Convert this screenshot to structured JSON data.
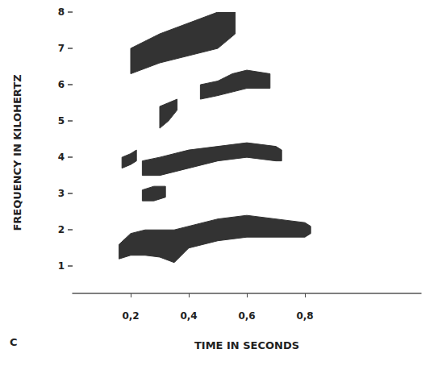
{
  "chart_data": {
    "type": "spectrogram",
    "panel_label": "C",
    "x_label": "TIME IN SECONDS",
    "y_label": "FREQUENCY IN KILOHERTZ",
    "color": "#333333",
    "grid": false,
    "xlim": [
      0,
      1.2
    ],
    "xticks": [
      {
        "value": 0.2,
        "label": "0,2"
      },
      {
        "value": 0.4,
        "label": "0,4"
      },
      {
        "value": 0.6,
        "label": "0,6"
      },
      {
        "value": 0.8,
        "label": "0,8"
      }
    ],
    "ylim": [
      0.25,
      8
    ],
    "yticks": [
      1,
      2,
      3,
      4,
      5,
      6,
      7,
      8
    ],
    "series": [
      {
        "x": [
          0.16,
          0.2,
          0.25,
          0.3,
          0.35,
          0.4,
          0.5,
          0.6,
          0.7,
          0.8,
          0.82
        ],
        "low": [
          1.2,
          1.3,
          1.3,
          1.25,
          1.1,
          1.5,
          1.7,
          1.8,
          1.8,
          1.8,
          1.9
        ],
        "high": [
          1.6,
          1.9,
          2.0,
          2.0,
          2.0,
          2.1,
          2.3,
          2.4,
          2.3,
          2.2,
          2.1
        ]
      },
      {
        "x": [
          0.24,
          0.3,
          0.4,
          0.5,
          0.6,
          0.7,
          0.72
        ],
        "low": [
          3.5,
          3.5,
          3.7,
          3.9,
          4.0,
          3.9,
          3.9
        ],
        "high": [
          3.9,
          4.0,
          4.2,
          4.3,
          4.4,
          4.3,
          4.2
        ]
      },
      {
        "x": [
          0.17,
          0.2,
          0.22
        ],
        "low": [
          3.7,
          3.8,
          3.9
        ],
        "high": [
          4.0,
          4.1,
          4.2
        ]
      },
      {
        "x": [
          0.24,
          0.28,
          0.32
        ],
        "low": [
          2.8,
          2.8,
          2.9
        ],
        "high": [
          3.1,
          3.2,
          3.2
        ]
      },
      {
        "x": [
          0.3,
          0.33,
          0.36
        ],
        "low": [
          4.8,
          5.0,
          5.3
        ],
        "high": [
          5.4,
          5.5,
          5.6
        ]
      },
      {
        "x": [
          0.44,
          0.5,
          0.55,
          0.6,
          0.68
        ],
        "low": [
          5.6,
          5.7,
          5.8,
          5.9,
          5.9
        ],
        "high": [
          6.0,
          6.1,
          6.3,
          6.4,
          6.3
        ]
      },
      {
        "x": [
          0.2,
          0.3,
          0.4,
          0.5,
          0.56
        ],
        "low": [
          6.3,
          6.6,
          6.8,
          7.0,
          7.4
        ],
        "high": [
          7.0,
          7.4,
          7.7,
          8.0,
          8.0
        ]
      }
    ]
  }
}
